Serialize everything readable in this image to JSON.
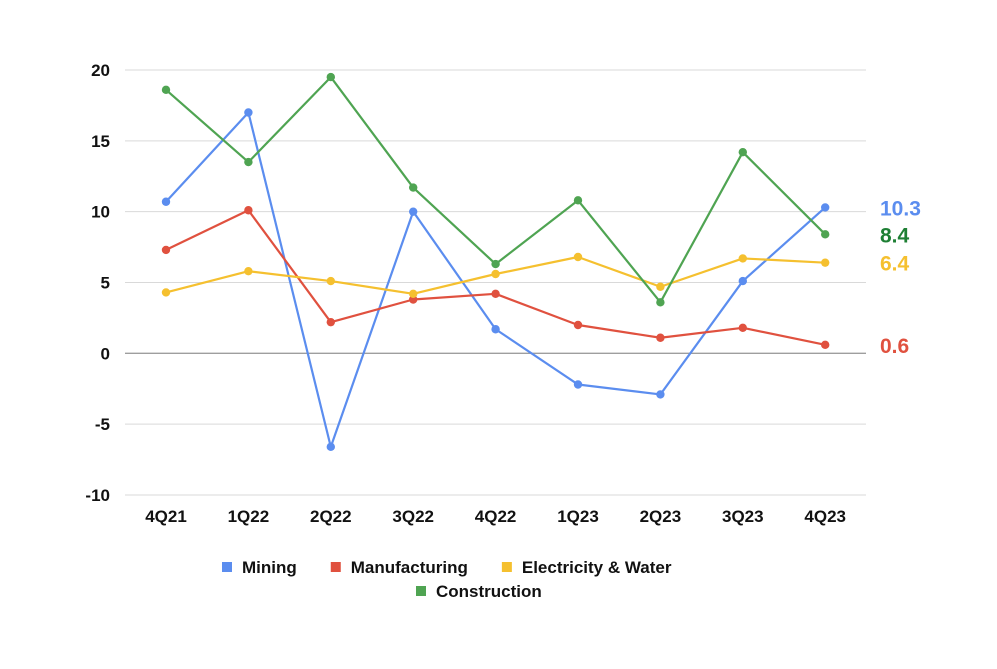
{
  "chart_data": {
    "type": "line",
    "title": "",
    "xlabel": "",
    "ylabel": "",
    "ylim": [
      -10,
      20
    ],
    "yticks": [
      20,
      15,
      10,
      5,
      0,
      -5,
      -10
    ],
    "grid": true,
    "legend_position": "bottom",
    "categories": [
      "4Q21",
      "1Q22",
      "2Q22",
      "3Q22",
      "4Q22",
      "1Q23",
      "2Q23",
      "3Q23",
      "4Q23"
    ],
    "series": [
      {
        "name": "Mining",
        "color": "#5b8def",
        "values": [
          10.7,
          17.0,
          -6.6,
          10.0,
          1.7,
          -2.2,
          -2.9,
          5.1,
          10.3
        ],
        "end_label": "10.3"
      },
      {
        "name": "Manufacturing",
        "color": "#e0513f",
        "values": [
          7.3,
          10.1,
          2.2,
          3.8,
          4.2,
          2.0,
          1.1,
          1.8,
          0.6
        ],
        "end_label": "0.6"
      },
      {
        "name": "Electricity & Water",
        "color": "#f5c02f",
        "values": [
          4.3,
          5.8,
          5.1,
          4.2,
          5.6,
          6.8,
          4.7,
          6.7,
          6.4
        ],
        "end_label": "6.4"
      },
      {
        "name": "Construction",
        "color": "#4fa452",
        "values": [
          18.6,
          13.5,
          19.5,
          11.7,
          6.3,
          10.8,
          3.6,
          14.2,
          8.4
        ],
        "end_label": "8.4",
        "end_label_color": "#1e7f34"
      }
    ]
  }
}
